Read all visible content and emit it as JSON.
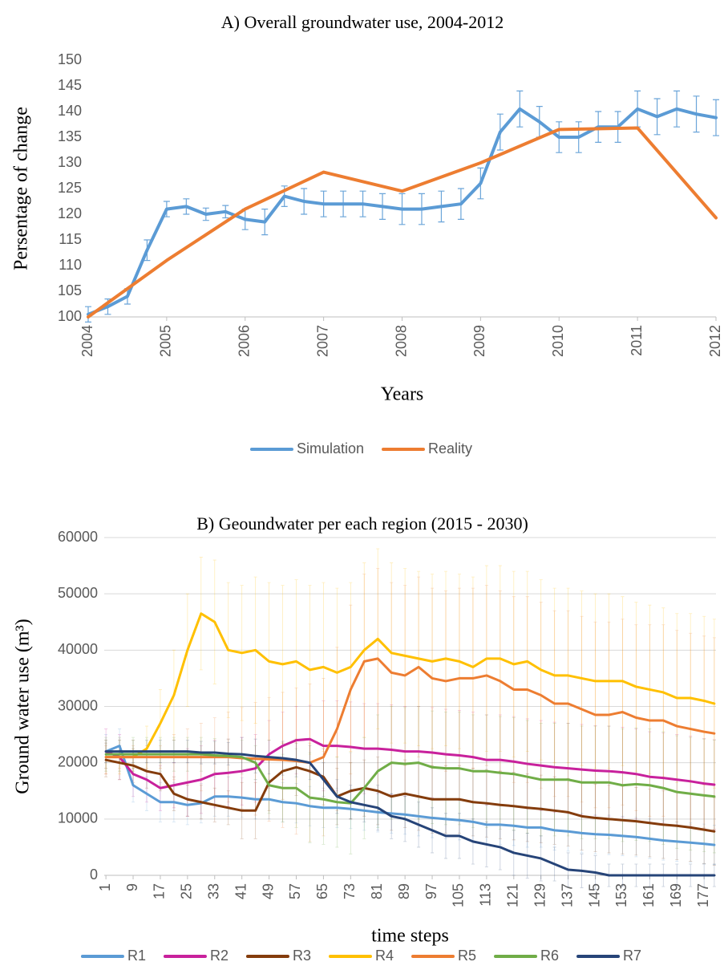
{
  "chart_data": [
    {
      "type": "line",
      "title": "A) Overall groundwater use, 2004-2012",
      "x_label": "Years",
      "y_label": "Persentage of change",
      "xlim": [
        2004,
        2012
      ],
      "xticks": [
        2004,
        2005,
        2006,
        2007,
        2008,
        2009,
        2010,
        2011,
        2012
      ],
      "ylim": [
        100,
        150
      ],
      "yticks": [
        100,
        105,
        110,
        115,
        120,
        125,
        130,
        135,
        140,
        145,
        150
      ],
      "grid": false,
      "legend": "bottom",
      "series": [
        {
          "name": "Simulation",
          "color": "#5b9bd5",
          "x": [
            2004,
            2004.25,
            2004.5,
            2004.75,
            2005,
            2005.25,
            2005.5,
            2005.75,
            2006,
            2006.25,
            2006.5,
            2006.75,
            2007,
            2007.25,
            2007.5,
            2007.75,
            2008,
            2008.25,
            2008.5,
            2008.75,
            2009,
            2009.25,
            2009.5,
            2009.75,
            2010,
            2010.25,
            2010.5,
            2010.75,
            2011,
            2011.25,
            2011.5,
            2011.75,
            2012
          ],
          "values": [
            100.5,
            102,
            104,
            113,
            121,
            121.5,
            120,
            120.5,
            119,
            118.5,
            123.5,
            122.5,
            122,
            122,
            122,
            121.5,
            121,
            121,
            121.5,
            122,
            126,
            136,
            140.5,
            138,
            135,
            135,
            137,
            137,
            140.5,
            139,
            140.5,
            139.5,
            138.8
          ],
          "errors": [
            1.5,
            1.5,
            1.5,
            2,
            1.5,
            1.5,
            1.2,
            1.2,
            2,
            2.5,
            2,
            2.5,
            2.5,
            2.5,
            2.5,
            2.5,
            3,
            3,
            3,
            3,
            3,
            3.5,
            3.5,
            3,
            3,
            3,
            3,
            3,
            3.5,
            3.5,
            3.5,
            3.5,
            3.5
          ]
        },
        {
          "name": "Reality",
          "color": "#ed7d31",
          "x": [
            2004,
            2005,
            2006,
            2007,
            2008,
            2009,
            2010,
            2011,
            2012
          ],
          "values": [
            100,
            111,
            121,
            128.2,
            124.5,
            130,
            136.5,
            136.8,
            119.3
          ]
        }
      ]
    },
    {
      "type": "line",
      "title": "B) Geoundwater per each region (2015 - 2030)",
      "x_label": "time steps",
      "y_label": "Ground water use (m³)",
      "xlim": [
        0.5,
        180.5
      ],
      "xticks": [
        1,
        9,
        17,
        25,
        33,
        41,
        49,
        57,
        65,
        73,
        81,
        89,
        97,
        105,
        113,
        121,
        129,
        137,
        145,
        153,
        161,
        169,
        177
      ],
      "ylim": [
        0,
        60000
      ],
      "yticks": [
        0,
        10000,
        20000,
        30000,
        40000,
        50000,
        60000
      ],
      "grid": true,
      "legend": "bottom",
      "x": [
        1,
        5,
        9,
        13,
        17,
        21,
        25,
        29,
        33,
        37,
        41,
        45,
        49,
        53,
        57,
        61,
        65,
        69,
        73,
        77,
        81,
        85,
        89,
        93,
        97,
        101,
        105,
        109,
        113,
        117,
        121,
        125,
        129,
        133,
        137,
        141,
        145,
        149,
        153,
        157,
        161,
        165,
        169,
        173,
        177,
        180
      ],
      "series": [
        {
          "name": "R1",
          "color": "#5b9bd5",
          "values": [
            22000,
            23000,
            16000,
            14500,
            13000,
            13000,
            12500,
            12800,
            14000,
            14000,
            13800,
            13500,
            13500,
            13000,
            12800,
            12300,
            12000,
            12000,
            11800,
            11500,
            11200,
            11000,
            10800,
            10500,
            10200,
            10000,
            9800,
            9500,
            9000,
            9000,
            8800,
            8500,
            8500,
            8000,
            7800,
            7500,
            7300,
            7200,
            7000,
            6800,
            6500,
            6200,
            6000,
            5800,
            5600,
            5400
          ],
          "errors": [
            3000,
            3000,
            3000,
            3000,
            3500,
            3500,
            3500,
            3500,
            3500,
            3500,
            3500,
            3500,
            3500,
            3500,
            3500,
            3500,
            3500,
            3500,
            3500,
            3500,
            3500,
            3500,
            3500,
            3500,
            3500,
            3500,
            3500,
            3500,
            3500,
            3500,
            3500,
            3500,
            3500,
            3500,
            3500,
            3500,
            3500,
            3500,
            3500,
            3500,
            3500,
            3500,
            3500,
            3500,
            3500,
            3500
          ]
        },
        {
          "name": "R2",
          "color": "#c8219c",
          "values": [
            22000,
            21000,
            18000,
            17000,
            15500,
            16000,
            16500,
            17000,
            18000,
            18200,
            18500,
            19000,
            21500,
            23000,
            24000,
            24200,
            23000,
            23000,
            22800,
            22500,
            22500,
            22300,
            22000,
            22000,
            21800,
            21500,
            21300,
            21000,
            20500,
            20500,
            20200,
            19800,
            19500,
            19200,
            19000,
            18800,
            18600,
            18500,
            18300,
            18000,
            17500,
            17300,
            17000,
            16700,
            16300,
            16100
          ],
          "errors": [
            4000,
            4000,
            4000,
            4000,
            4000,
            4000,
            6000,
            6000,
            6000,
            6000,
            6000,
            6000,
            6000,
            6000,
            6000,
            6000,
            8000,
            8000,
            8000,
            8000,
            8000,
            8000,
            8000,
            8000,
            8000,
            8000,
            8000,
            8000,
            8000,
            8000,
            8000,
            8000,
            8000,
            8000,
            8000,
            8000,
            8000,
            8000,
            8000,
            8000,
            8000,
            8000,
            8000,
            8000,
            8000,
            8000
          ]
        },
        {
          "name": "R3",
          "color": "#843c0c",
          "values": [
            20500,
            20000,
            19500,
            18500,
            18000,
            14500,
            13500,
            13000,
            12500,
            12000,
            11500,
            11500,
            16500,
            18500,
            19200,
            18500,
            17500,
            14000,
            15000,
            15500,
            15000,
            14000,
            14500,
            14000,
            13500,
            13500,
            13500,
            13000,
            12800,
            12500,
            12300,
            12000,
            11800,
            11500,
            11200,
            10500,
            10200,
            10000,
            9800,
            9600,
            9300,
            9000,
            8800,
            8500,
            8100,
            7800
          ],
          "errors": [
            3000,
            3000,
            3000,
            3000,
            3000,
            3000,
            3000,
            3000,
            3000,
            3000,
            5000,
            5000,
            5000,
            5000,
            5000,
            5000,
            5000,
            5000,
            5000,
            5000,
            6000,
            6000,
            6000,
            6000,
            6000,
            6000,
            6000,
            6000,
            6000,
            6000,
            6000,
            6000,
            6000,
            6000,
            6000,
            6000,
            6000,
            6000,
            6000,
            6000,
            6000,
            6000,
            6000,
            6000,
            6000,
            6000
          ]
        },
        {
          "name": "R4",
          "color": "#ffc000",
          "values": [
            21000,
            21000,
            21000,
            22500,
            27000,
            32000,
            40000,
            46500,
            45000,
            40000,
            39500,
            40000,
            38000,
            37500,
            38000,
            36500,
            37000,
            36000,
            37000,
            40000,
            42000,
            39500,
            39000,
            38500,
            38000,
            38500,
            38000,
            37000,
            38500,
            38500,
            37500,
            38000,
            36500,
            35500,
            35500,
            35000,
            34500,
            34500,
            34500,
            33500,
            33000,
            32500,
            31500,
            31500,
            31000,
            30500
          ],
          "errors": [
            3000,
            3000,
            3000,
            4000,
            6000,
            8000,
            10000,
            10000,
            11000,
            12000,
            12000,
            13000,
            14000,
            14000,
            14500,
            15000,
            15000,
            15000,
            15000,
            15500,
            16000,
            16000,
            15500,
            15500,
            15500,
            15500,
            15500,
            16000,
            16500,
            16500,
            16500,
            16000,
            16000,
            15500,
            15500,
            15500,
            15500,
            15500,
            15000,
            15000,
            15000,
            15000,
            15000,
            15000,
            15000,
            15000
          ]
        },
        {
          "name": "R5",
          "color": "#ed7d31",
          "values": [
            21000,
            21000,
            21000,
            21000,
            21000,
            21000,
            21000,
            21000,
            21000,
            21000,
            20800,
            20700,
            20600,
            20500,
            20300,
            20000,
            21000,
            26000,
            33000,
            38000,
            38500,
            36000,
            35500,
            37000,
            35000,
            34500,
            35000,
            35000,
            35500,
            34500,
            33000,
            33000,
            32000,
            30500,
            30500,
            29500,
            28500,
            28500,
            29000,
            28000,
            27500,
            27500,
            26500,
            26000,
            25500,
            25200
          ],
          "errors": [
            2000,
            2000,
            2000,
            2000,
            2000,
            4000,
            5000,
            6000,
            7000,
            8000,
            9000,
            10000,
            11000,
            12000,
            13000,
            14000,
            14000,
            14500,
            15000,
            15500,
            16000,
            16000,
            16000,
            16000,
            16000,
            16000,
            16000,
            16000,
            16000,
            16000,
            16500,
            16500,
            16500,
            16500,
            16500,
            16500,
            16500,
            16500,
            16500,
            16500,
            17000,
            17000,
            17000,
            17000,
            17000,
            17000
          ]
        },
        {
          "name": "R6",
          "color": "#70ad47",
          "values": [
            21500,
            21500,
            21500,
            21500,
            21500,
            21500,
            21500,
            21500,
            21300,
            21200,
            21000,
            20000,
            16000,
            15500,
            15500,
            13800,
            13500,
            13000,
            12800,
            15500,
            18500,
            20000,
            19800,
            20000,
            19200,
            19000,
            19000,
            18500,
            18500,
            18200,
            18000,
            17500,
            17000,
            17000,
            17000,
            16500,
            16500,
            16500,
            16000,
            16200,
            16000,
            15500,
            14800,
            14500,
            14200,
            14000
          ],
          "errors": [
            3000,
            3000,
            3000,
            3000,
            3000,
            3000,
            3000,
            3000,
            3000,
            3000,
            3000,
            3000,
            5000,
            6000,
            7000,
            8000,
            8000,
            8000,
            9000,
            9000,
            10000,
            10000,
            10000,
            10000,
            10000,
            10000,
            10000,
            10000,
            10000,
            10000,
            10000,
            10000,
            10000,
            10000,
            10000,
            10000,
            10000,
            10000,
            10000,
            10000,
            10000,
            10000,
            10000,
            10000,
            10000,
            10000
          ]
        },
        {
          "name": "R7",
          "color": "#264478",
          "values": [
            22000,
            22000,
            22000,
            22000,
            22000,
            22000,
            22000,
            21800,
            21800,
            21600,
            21500,
            21200,
            21000,
            20800,
            20500,
            20000,
            17000,
            14000,
            13000,
            12500,
            12000,
            10500,
            10000,
            9000,
            8000,
            7000,
            7000,
            6000,
            5500,
            5000,
            4000,
            3500,
            3000,
            2000,
            1000,
            800,
            500,
            0,
            0,
            0,
            0,
            0,
            0,
            0,
            0,
            0
          ],
          "errors": [
            2000,
            2000,
            2000,
            2000,
            2000,
            2000,
            2000,
            2000,
            2000,
            2000,
            3000,
            3000,
            3000,
            3000,
            3000,
            3000,
            3000,
            3000,
            3000,
            3000,
            4000,
            4000,
            4000,
            4000,
            4000,
            4000,
            4000,
            4000,
            4000,
            4000,
            4000,
            4000,
            4000,
            3000,
            3000,
            3000,
            3000,
            2000,
            2000,
            2000,
            2000,
            2000,
            2000,
            2000,
            2000,
            2000
          ]
        }
      ]
    }
  ]
}
